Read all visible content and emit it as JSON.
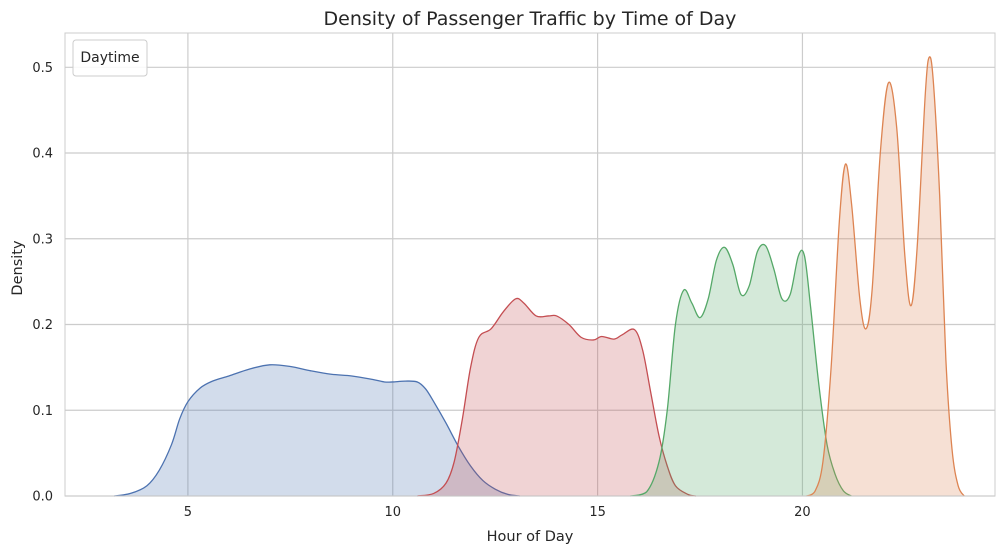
{
  "chart_data": {
    "type": "area",
    "title": "Density of Passenger Traffic by Time of Day",
    "xlabel": "Hour of Day",
    "ylabel": "Density",
    "xlim": [
      2.0,
      24.7
    ],
    "ylim": [
      0,
      0.54
    ],
    "x_ticks": [
      5,
      10,
      15,
      20
    ],
    "y_ticks": [
      0.0,
      0.1,
      0.2,
      0.3,
      0.4,
      0.5
    ],
    "x_tick_labels": [
      "5",
      "10",
      "15",
      "20"
    ],
    "y_tick_labels": [
      "0.0",
      "0.1",
      "0.2",
      "0.3",
      "0.4",
      "0.5"
    ],
    "grid": true,
    "legend": {
      "title": "Daytime",
      "position": "top-left",
      "entries": []
    },
    "series": [
      {
        "color": "#4c72b0",
        "points": [
          [
            3.2,
            0.0
          ],
          [
            3.6,
            0.003
          ],
          [
            4.0,
            0.012
          ],
          [
            4.3,
            0.03
          ],
          [
            4.6,
            0.06
          ],
          [
            4.8,
            0.09
          ],
          [
            5.0,
            0.11
          ],
          [
            5.3,
            0.126
          ],
          [
            5.6,
            0.134
          ],
          [
            6.0,
            0.14
          ],
          [
            6.5,
            0.148
          ],
          [
            7.0,
            0.153
          ],
          [
            7.5,
            0.151
          ],
          [
            8.0,
            0.146
          ],
          [
            8.5,
            0.142
          ],
          [
            9.0,
            0.14
          ],
          [
            9.5,
            0.136
          ],
          [
            9.8,
            0.133
          ],
          [
            10.0,
            0.133
          ],
          [
            10.3,
            0.134
          ],
          [
            10.6,
            0.133
          ],
          [
            10.8,
            0.125
          ],
          [
            11.0,
            0.11
          ],
          [
            11.3,
            0.085
          ],
          [
            11.6,
            0.058
          ],
          [
            11.9,
            0.035
          ],
          [
            12.2,
            0.018
          ],
          [
            12.5,
            0.008
          ],
          [
            12.8,
            0.002
          ],
          [
            13.1,
            0.0
          ]
        ]
      },
      {
        "color": "#c44e52",
        "points": [
          [
            10.6,
            0.0
          ],
          [
            11.0,
            0.003
          ],
          [
            11.3,
            0.015
          ],
          [
            11.5,
            0.04
          ],
          [
            11.7,
            0.09
          ],
          [
            11.9,
            0.15
          ],
          [
            12.1,
            0.185
          ],
          [
            12.4,
            0.195
          ],
          [
            12.7,
            0.215
          ],
          [
            13.0,
            0.23
          ],
          [
            13.2,
            0.225
          ],
          [
            13.5,
            0.21
          ],
          [
            13.8,
            0.21
          ],
          [
            14.0,
            0.21
          ],
          [
            14.3,
            0.2
          ],
          [
            14.6,
            0.185
          ],
          [
            14.9,
            0.182
          ],
          [
            15.1,
            0.186
          ],
          [
            15.4,
            0.183
          ],
          [
            15.6,
            0.188
          ],
          [
            15.9,
            0.194
          ],
          [
            16.1,
            0.17
          ],
          [
            16.3,
            0.12
          ],
          [
            16.5,
            0.07
          ],
          [
            16.7,
            0.035
          ],
          [
            16.9,
            0.012
          ],
          [
            17.2,
            0.002
          ],
          [
            17.4,
            0.0
          ]
        ]
      },
      {
        "color": "#55a868",
        "points": [
          [
            15.8,
            0.0
          ],
          [
            16.2,
            0.005
          ],
          [
            16.5,
            0.04
          ],
          [
            16.7,
            0.1
          ],
          [
            16.9,
            0.2
          ],
          [
            17.1,
            0.24
          ],
          [
            17.3,
            0.225
          ],
          [
            17.5,
            0.208
          ],
          [
            17.7,
            0.23
          ],
          [
            17.9,
            0.275
          ],
          [
            18.1,
            0.29
          ],
          [
            18.3,
            0.27
          ],
          [
            18.5,
            0.235
          ],
          [
            18.7,
            0.245
          ],
          [
            18.9,
            0.285
          ],
          [
            19.1,
            0.292
          ],
          [
            19.3,
            0.265
          ],
          [
            19.5,
            0.23
          ],
          [
            19.7,
            0.235
          ],
          [
            19.9,
            0.28
          ],
          [
            20.05,
            0.28
          ],
          [
            20.2,
            0.22
          ],
          [
            20.4,
            0.13
          ],
          [
            20.6,
            0.06
          ],
          [
            20.8,
            0.025
          ],
          [
            21.0,
            0.006
          ],
          [
            21.2,
            0.0
          ]
        ]
      },
      {
        "color": "#dd8452",
        "points": [
          [
            20.1,
            0.0
          ],
          [
            20.3,
            0.005
          ],
          [
            20.5,
            0.04
          ],
          [
            20.7,
            0.15
          ],
          [
            20.9,
            0.32
          ],
          [
            21.05,
            0.387
          ],
          [
            21.2,
            0.34
          ],
          [
            21.4,
            0.23
          ],
          [
            21.55,
            0.195
          ],
          [
            21.7,
            0.24
          ],
          [
            21.9,
            0.4
          ],
          [
            22.1,
            0.482
          ],
          [
            22.3,
            0.43
          ],
          [
            22.5,
            0.28
          ],
          [
            22.65,
            0.222
          ],
          [
            22.8,
            0.29
          ],
          [
            23.0,
            0.47
          ],
          [
            23.1,
            0.512
          ],
          [
            23.2,
            0.48
          ],
          [
            23.35,
            0.35
          ],
          [
            23.5,
            0.16
          ],
          [
            23.65,
            0.055
          ],
          [
            23.8,
            0.012
          ],
          [
            23.95,
            0.0
          ]
        ]
      }
    ]
  }
}
